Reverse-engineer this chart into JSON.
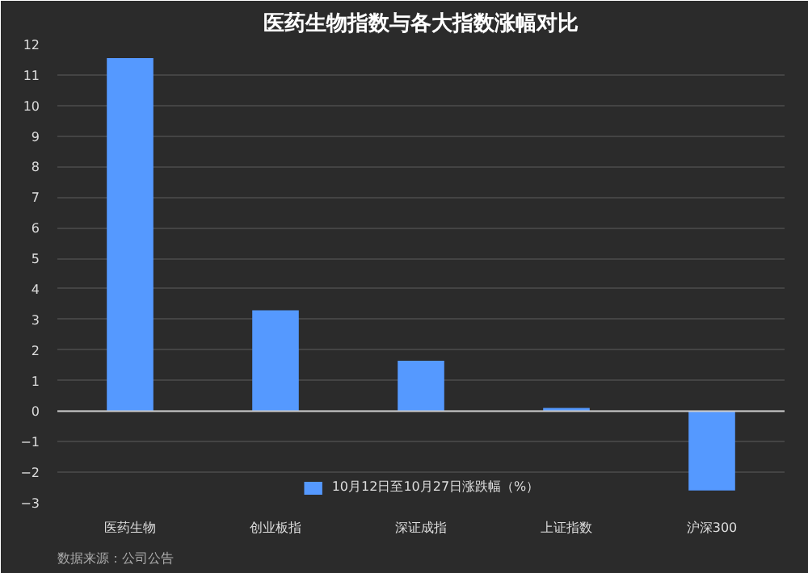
{
  "chart_data": {
    "type": "bar",
    "title": "医药生物指数与各大指数涨幅对比",
    "categories": [
      "医药生物",
      "创业板指",
      "深证成指",
      "上证指数",
      "沪深300"
    ],
    "series": [
      {
        "name": "10月12日至10月27日涨跌幅（%）",
        "color": "#5599ff",
        "values": [
          11.55,
          3.3,
          1.65,
          0.1,
          -2.6
        ]
      }
    ],
    "ylim": [
      -3,
      12
    ],
    "yticks": [
      -3,
      -2,
      -1,
      0,
      1,
      2,
      3,
      4,
      5,
      6,
      7,
      8,
      9,
      10,
      11,
      12
    ],
    "grid": "y",
    "legend": "bottom",
    "annotations": [
      "数据来源：公司公告"
    ]
  }
}
